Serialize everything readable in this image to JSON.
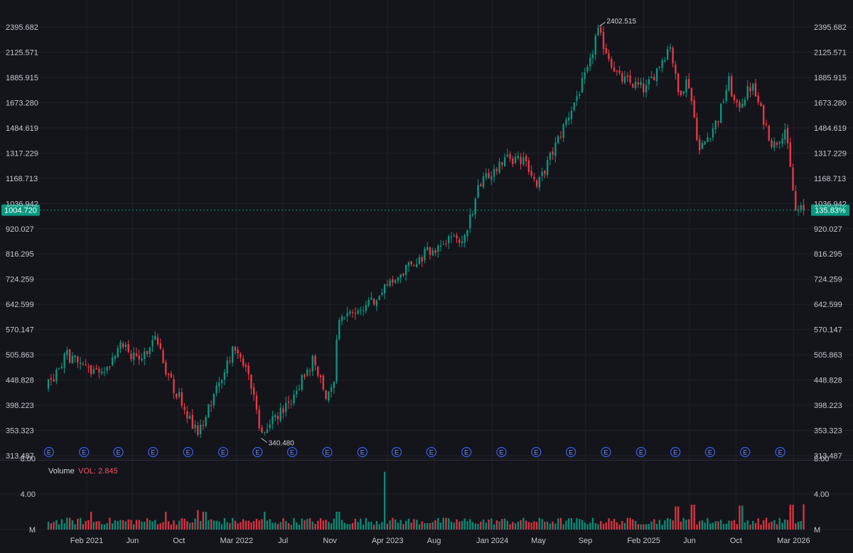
{
  "chart_data": {
    "type": "candlestick",
    "x_start": "2020-10",
    "x_end": "2026-04",
    "x_tick_labels": [
      "Feb 2021",
      "Jun",
      "Oct",
      "Mar 2022",
      "Jul",
      "Nov",
      "Apr 2023",
      "Aug",
      "Jan 2024",
      "May",
      "Sep",
      "Feb 2025",
      "Jun",
      "Oct",
      "Mar 2026"
    ],
    "y_scale": "log",
    "ylim": [
      300,
      2500
    ],
    "y_tick_labels": [
      "2395.682",
      "2125.571",
      "1885.915",
      "1673.280",
      "1484.619",
      "1317.229",
      "1168.713",
      "1036.942",
      "920.027",
      "816.295",
      "724.259",
      "642.599",
      "570.147",
      "505.863",
      "448.828",
      "398.223",
      "353.323",
      "313.487"
    ],
    "price_anchors": [
      {
        "x": "2020-10-20",
        "y": 430
      },
      {
        "x": "2020-12-15",
        "y": 505
      },
      {
        "x": "2021-03-10",
        "y": 455
      },
      {
        "x": "2021-05-10",
        "y": 535
      },
      {
        "x": "2021-06-15",
        "y": 490
      },
      {
        "x": "2021-08-05",
        "y": 545
      },
      {
        "x": "2021-09-10",
        "y": 450
      },
      {
        "x": "2021-11-25",
        "y": 345
      },
      {
        "x": "2022-02-20",
        "y": 515
      },
      {
        "x": "2022-04-05",
        "y": 470
      },
      {
        "x": "2022-05-10",
        "y": 345
      },
      {
        "x": "2022-07-15",
        "y": 400
      },
      {
        "x": "2022-09-20",
        "y": 490
      },
      {
        "x": "2022-10-30",
        "y": 410
      },
      {
        "x": "2022-11-15",
        "y": 455
      },
      {
        "x": "2022-11-25",
        "y": 590
      },
      {
        "x": "2023-01-10",
        "y": 610
      },
      {
        "x": "2023-03-25",
        "y": 685
      },
      {
        "x": "2023-06-15",
        "y": 790
      },
      {
        "x": "2023-09-25",
        "y": 885
      },
      {
        "x": "2023-10-20",
        "y": 860
      },
      {
        "x": "2023-12-01",
        "y": 1120
      },
      {
        "x": "2024-02-05",
        "y": 1290
      },
      {
        "x": "2024-04-05",
        "y": 1260
      },
      {
        "x": "2024-04-30",
        "y": 1120
      },
      {
        "x": "2024-06-10",
        "y": 1320
      },
      {
        "x": "2024-09-15",
        "y": 1980
      },
      {
        "x": "2024-10-05",
        "y": 2360
      },
      {
        "x": "2024-12-01",
        "y": 1880
      },
      {
        "x": "2025-02-10",
        "y": 1780
      },
      {
        "x": "2025-04-15",
        "y": 2210
      },
      {
        "x": "2025-05-05",
        "y": 1750
      },
      {
        "x": "2025-06-01",
        "y": 1870
      },
      {
        "x": "2025-07-01",
        "y": 1330
      },
      {
        "x": "2025-08-20",
        "y": 1560
      },
      {
        "x": "2025-09-15",
        "y": 1860
      },
      {
        "x": "2025-10-05",
        "y": 1620
      },
      {
        "x": "2025-11-15",
        "y": 1820
      },
      {
        "x": "2026-01-10",
        "y": 1360
      },
      {
        "x": "2026-02-10",
        "y": 1480
      },
      {
        "x": "2026-03-10",
        "y": 1000
      },
      {
        "x": "2026-03-25",
        "y": 1004.72
      }
    ],
    "current_price": "1004.720",
    "current_change": "135.83%",
    "annotations": [
      {
        "label": "2402.515",
        "x": "2024-10-08",
        "y": 2402.515,
        "type": "high"
      },
      {
        "label": "340.480",
        "x": "2022-05-05",
        "y": 340.48,
        "type": "low"
      }
    ],
    "earnings_marker_label": "E",
    "earnings_dates": [
      "2020-10-25",
      "2021-01-25",
      "2021-04-25",
      "2021-07-25",
      "2021-10-25",
      "2022-01-25",
      "2022-04-25",
      "2022-07-25",
      "2022-10-25",
      "2023-01-25",
      "2023-04-25",
      "2023-07-25",
      "2023-10-25",
      "2024-01-25",
      "2024-04-25",
      "2024-07-25",
      "2024-10-25",
      "2025-01-25",
      "2025-04-25",
      "2025-07-25",
      "2025-10-25",
      "2026-01-25"
    ],
    "volume": {
      "title": "Volume",
      "value_label": "VOL: 2.845",
      "y_tick_labels": [
        "8.00",
        "4.00",
        "M"
      ],
      "ylim": [
        0,
        8
      ],
      "typical": 0.9,
      "spikes": [
        {
          "x": "2021-02-10",
          "value": 2.0
        },
        {
          "x": "2021-08-25",
          "value": 2.0
        },
        {
          "x": "2021-11-15",
          "value": 2.2
        },
        {
          "x": "2021-12-05",
          "value": 2.0
        },
        {
          "x": "2022-05-10",
          "value": 2.0
        },
        {
          "x": "2022-11-20",
          "value": 2.0
        },
        {
          "x": "2023-03-20",
          "value": 6.5
        },
        {
          "x": "2025-04-25",
          "value": 2.6
        },
        {
          "x": "2025-06-05",
          "value": 2.8
        },
        {
          "x": "2025-10-10",
          "value": 2.7
        },
        {
          "x": "2026-02-20",
          "value": 2.8
        },
        {
          "x": "2026-03-25",
          "value": 2.845
        }
      ]
    },
    "colors": {
      "up": "#089981",
      "down": "#f23645",
      "last_price_tag": "#089981",
      "earnings_marker": "#3b5ae8"
    }
  }
}
